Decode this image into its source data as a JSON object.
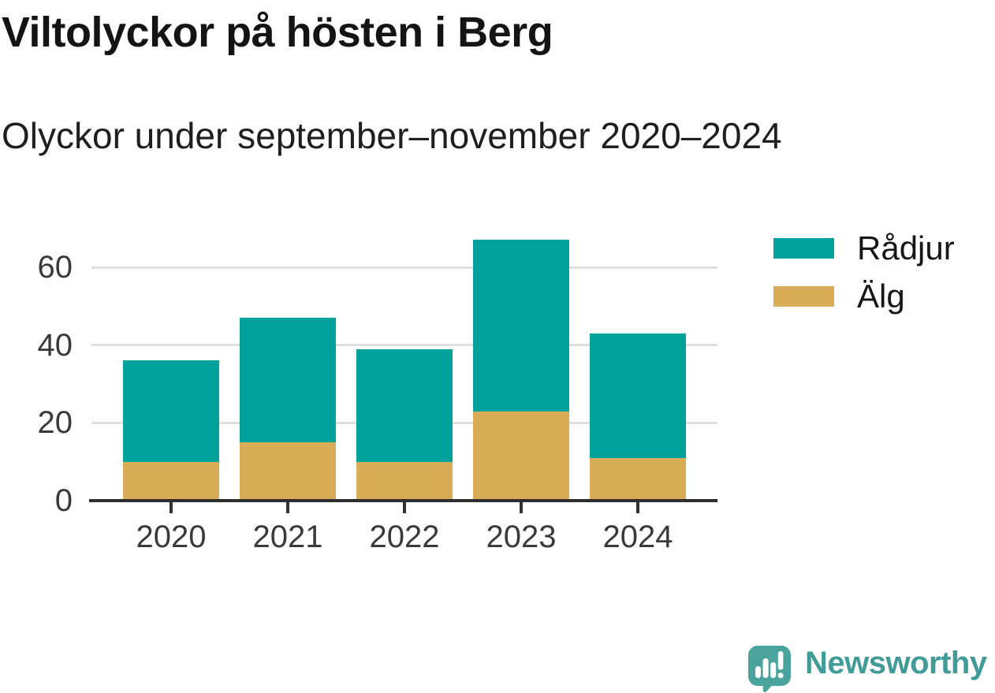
{
  "header": {
    "title": "Viltolyckor på hösten i Berg",
    "subtitle": "Olyckor under september–november 2020–2024"
  },
  "chart_data": {
    "type": "bar",
    "stacked": true,
    "title": "Viltolyckor på hösten i Berg",
    "subtitle": "Olyckor under september–november 2020–2024",
    "categories": [
      "2020",
      "2021",
      "2022",
      "2023",
      "2024"
    ],
    "series": [
      {
        "name": "Rådjur",
        "color": "#00a29b",
        "values": [
          26,
          32,
          29,
          44,
          32
        ]
      },
      {
        "name": "Älg",
        "color": "#d9ac58",
        "values": [
          10,
          15,
          10,
          23,
          11
        ]
      }
    ],
    "stack_order_bottom_to_top": [
      "Älg",
      "Rådjur"
    ],
    "totals": [
      36,
      47,
      39,
      67,
      43
    ],
    "xlabel": "",
    "ylabel": "",
    "ylim": [
      0,
      69
    ],
    "yticks": [
      0,
      20,
      40,
      60
    ],
    "grid": "horizontal",
    "gridline_color": "#dedede",
    "axis_color": "#2e2e2e",
    "legend_position": "top-right"
  },
  "legend": {
    "items": [
      {
        "label": "Rådjur",
        "color": "#00a29b"
      },
      {
        "label": "Älg",
        "color": "#d9ac58"
      }
    ]
  },
  "footer": {
    "brand": "Newsworthy",
    "brand_color": "#419b96",
    "logo_icon": "bar-chart-speech-bubble",
    "logo_color": "#4ba39d"
  }
}
